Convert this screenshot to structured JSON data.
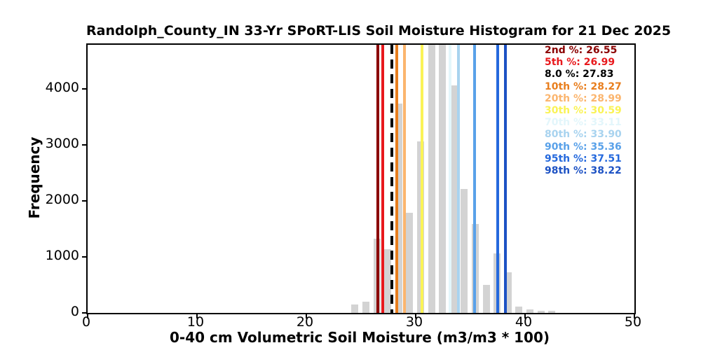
{
  "figure": {
    "title": "Randolph_County_IN 33-Yr SPoRT-LIS Soil Moisture Histogram for 21 Dec 2025"
  },
  "chart_data": {
    "type": "bar",
    "subtype": "histogram",
    "title": "Randolph_County_IN 33-Yr SPoRT-LIS Soil Moisture Histogram for 21 Dec 2025",
    "xlabel": "0-40 cm Volumetric Soil Moisture (m3/m3 * 100)",
    "ylabel": "Frequency",
    "xlim": [
      0,
      50
    ],
    "ylim": [
      0,
      4790
    ],
    "xticks": [
      0,
      10,
      20,
      30,
      40,
      50
    ],
    "yticks": [
      0,
      1000,
      2000,
      3000,
      4000
    ],
    "grid": "off",
    "legend_position": "upper-right-inside",
    "bar_color": "#D3D3D3",
    "bin_width": 1.0,
    "bar_display_width_units": 0.64,
    "bars": [
      {
        "x": 24.45,
        "freq": 146
      },
      {
        "x": 25.45,
        "freq": 205
      },
      {
        "x": 26.45,
        "freq": 1330
      },
      {
        "x": 27.45,
        "freq": 1140
      },
      {
        "x": 28.45,
        "freq": 3740
      },
      {
        "x": 29.45,
        "freq": 1790
      },
      {
        "x": 30.45,
        "freq": 3065
      },
      {
        "x": 31.45,
        "freq": 4790
      },
      {
        "x": 32.45,
        "freq": 4790
      },
      {
        "x": 33.45,
        "freq": 4060
      },
      {
        "x": 34.45,
        "freq": 2210
      },
      {
        "x": 35.45,
        "freq": 1585
      },
      {
        "x": 36.45,
        "freq": 500
      },
      {
        "x": 37.45,
        "freq": 1065
      },
      {
        "x": 38.45,
        "freq": 730
      },
      {
        "x": 39.45,
        "freq": 112
      },
      {
        "x": 40.45,
        "freq": 62
      },
      {
        "x": 41.45,
        "freq": 41
      },
      {
        "x": 42.45,
        "freq": 34
      }
    ],
    "note": "bars at x=31.45 and x=32.45 reach the top of the axes (clipped at ylim)",
    "percentile_lines": [
      {
        "id": "2nd",
        "label": "2nd %",
        "value": 26.55,
        "display": "26.55",
        "color": "#8B0000",
        "style": "solid"
      },
      {
        "id": "5th",
        "label": "5th %",
        "value": 26.99,
        "display": "26.99",
        "color": "#E8191D",
        "style": "solid"
      },
      {
        "id": "8pt0",
        "label": "8.0 %",
        "value": 27.83,
        "display": "27.83",
        "color": "#000000",
        "style": "dashed"
      },
      {
        "id": "10th",
        "label": "10th %",
        "value": 28.27,
        "display": "28.27",
        "color": "#E87E1E",
        "style": "solid"
      },
      {
        "id": "20th",
        "label": "20th %",
        "value": 28.99,
        "display": "28.99",
        "color": "#FBB56E",
        "style": "solid"
      },
      {
        "id": "30th",
        "label": "30th %",
        "value": 30.59,
        "display": "30.59",
        "color": "#FAF356",
        "style": "solid"
      },
      {
        "id": "70th",
        "label": "70th %",
        "value": 33.11,
        "display": "33.11",
        "color": "#E3F6FB",
        "style": "solid"
      },
      {
        "id": "80th",
        "label": "80th %",
        "value": 33.9,
        "display": "33.90",
        "color": "#A8D3EF",
        "style": "solid"
      },
      {
        "id": "90th",
        "label": "90th %",
        "value": 35.36,
        "display": "35.36",
        "color": "#59A1E9",
        "style": "solid"
      },
      {
        "id": "95th",
        "label": "95th %",
        "value": 37.51,
        "display": "37.51",
        "color": "#2569DD",
        "style": "solid"
      },
      {
        "id": "98th",
        "label": "98th %",
        "value": 38.22,
        "display": "38.22",
        "color": "#1D52C4",
        "style": "solid"
      }
    ],
    "legend_separator": ": "
  }
}
